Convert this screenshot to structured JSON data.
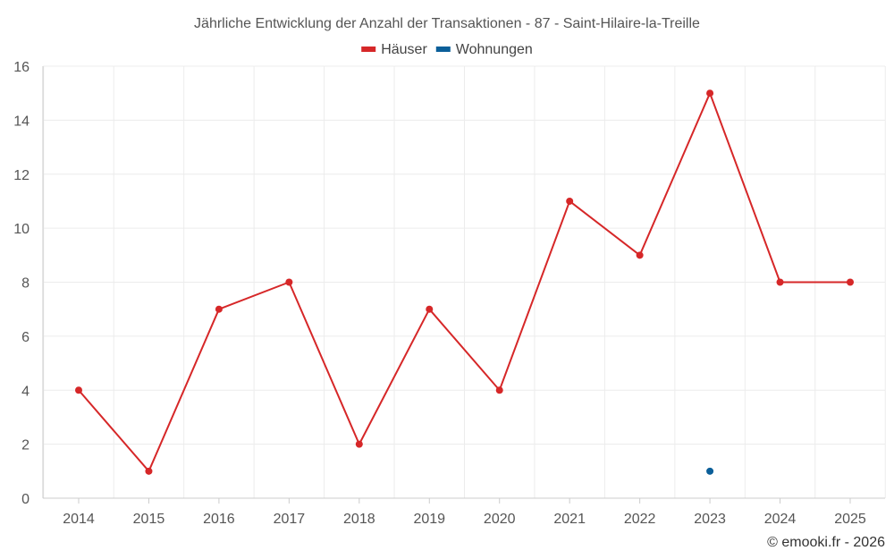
{
  "chart_data": {
    "type": "line",
    "title": "Jährliche Entwicklung der Anzahl der Transaktionen - 87 - Saint-Hilaire-la-Treille",
    "categories": [
      "2014",
      "2015",
      "2016",
      "2017",
      "2018",
      "2019",
      "2020",
      "2021",
      "2022",
      "2023",
      "2024",
      "2025"
    ],
    "series": [
      {
        "name": "Häuser",
        "color": "#d62728",
        "values": [
          4,
          1,
          7,
          8,
          2,
          7,
          4,
          11,
          9,
          15,
          8,
          8
        ]
      },
      {
        "name": "Wohnungen",
        "color": "#0b5f99",
        "values": [
          null,
          null,
          null,
          null,
          null,
          null,
          null,
          null,
          null,
          1,
          null,
          null
        ]
      }
    ],
    "ylim": [
      0,
      16
    ],
    "yticks": [
      0,
      2,
      4,
      6,
      8,
      10,
      12,
      14,
      16
    ],
    "grid": true,
    "legend_position": "top-center",
    "xlabel": "",
    "ylabel": ""
  },
  "credit": "© emooki.fr - 2026"
}
